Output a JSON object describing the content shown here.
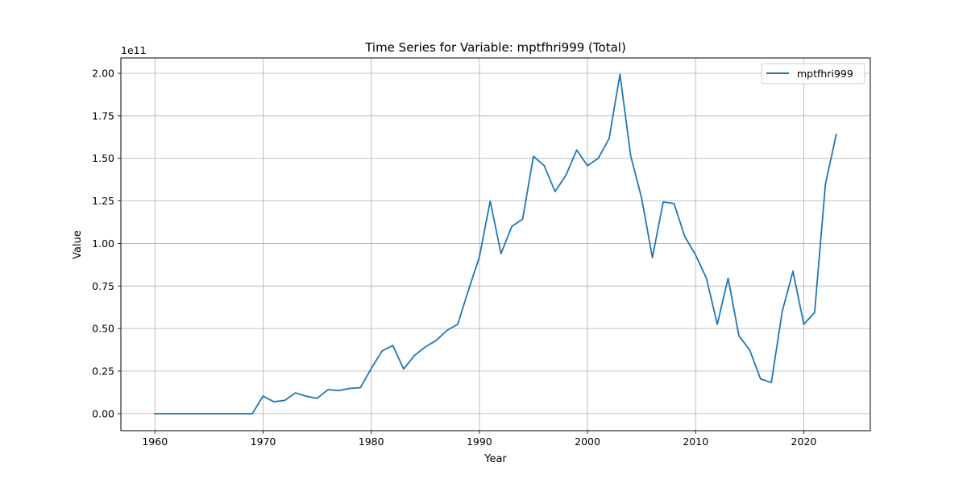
{
  "chart_data": {
    "type": "line",
    "title": "Time Series for Variable: mptfhri999 (Total)",
    "xlabel": "Year",
    "ylabel": "Value",
    "y_offset_label": "1e11",
    "y_scale": 100000000000,
    "xlim": [
      1956.85,
      2026.15
    ],
    "ylim": [
      -10000000000,
      209000000000
    ],
    "x_ticks": [
      1960,
      1970,
      1980,
      1990,
      2000,
      2010,
      2020
    ],
    "x_tick_labels": [
      "1960",
      "1970",
      "1980",
      "1990",
      "2000",
      "2010",
      "2020"
    ],
    "y_ticks": [
      0,
      25000000000,
      50000000000,
      75000000000,
      100000000000,
      125000000000,
      150000000000,
      175000000000,
      200000000000
    ],
    "y_tick_labels": [
      "0.00",
      "0.25",
      "0.50",
      "0.75",
      "1.00",
      "1.25",
      "1.50",
      "1.75",
      "2.00"
    ],
    "grid": true,
    "legend_position": "top-right",
    "series": [
      {
        "name": "mptfhri999",
        "color": "#1f77b4",
        "x": [
          1960,
          1961,
          1962,
          1963,
          1964,
          1965,
          1966,
          1967,
          1968,
          1969,
          1970,
          1971,
          1972,
          1973,
          1974,
          1975,
          1976,
          1977,
          1978,
          1979,
          1980,
          1981,
          1982,
          1983,
          1984,
          1985,
          1986,
          1987,
          1988,
          1989,
          1990,
          1991,
          1992,
          1993,
          1994,
          1995,
          1996,
          1997,
          1998,
          1999,
          2000,
          2001,
          2002,
          2003,
          2004,
          2005,
          2006,
          2007,
          2008,
          2009,
          2010,
          2011,
          2012,
          2013,
          2014,
          2015,
          2016,
          2017,
          2018,
          2019,
          2020,
          2021,
          2022,
          2023
        ],
        "y": [
          0,
          0,
          0,
          0,
          0,
          0,
          0,
          0,
          0,
          0,
          10300000000,
          7000000000,
          7800000000,
          12200000000,
          10200000000,
          9000000000,
          14100000000,
          13600000000,
          14800000000,
          15300000000,
          26500000000,
          36800000000,
          40100000000,
          26200000000,
          34200000000,
          39200000000,
          43000000000,
          48900000000,
          52500000000,
          72800000000,
          92000000000,
          124900000000,
          94000000000,
          110000000000,
          114300000000,
          151200000000,
          145700000000,
          130500000000,
          140000000000,
          154900000000,
          145700000000,
          150100000000,
          161700000000,
          199400000000,
          151200000000,
          126800000000,
          91700000000,
          124400000000,
          123500000000,
          104000000000,
          93200000000,
          79500000000,
          52500000000,
          79600000000,
          45800000000,
          37400000000,
          20400000000,
          18300000000,
          59900000000,
          83700000000,
          52500000000,
          59400000000,
          134800000000,
          164100000000
        ]
      }
    ]
  }
}
